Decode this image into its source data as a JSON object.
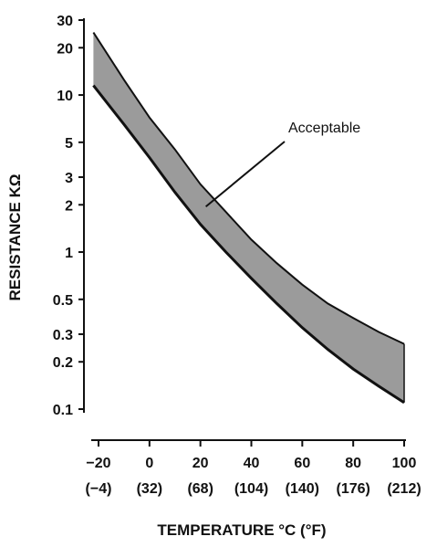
{
  "chart_data": {
    "type": "area",
    "xlabel": "TEMPERATURE °C (°F)",
    "ylabel": "RESISTANCE KΩ",
    "y_scale": "log",
    "xlim": [
      -20,
      100
    ],
    "ylim": [
      0.1,
      30
    ],
    "x_ticks": [
      {
        "value": -20,
        "label": "−20",
        "sublabel": "(−4)"
      },
      {
        "value": 0,
        "label": "0",
        "sublabel": "(32)"
      },
      {
        "value": 20,
        "label": "20",
        "sublabel": "(68)"
      },
      {
        "value": 40,
        "label": "40",
        "sublabel": "(104)"
      },
      {
        "value": 60,
        "label": "60",
        "sublabel": "(140)"
      },
      {
        "value": 80,
        "label": "80",
        "sublabel": "(176)"
      },
      {
        "value": 100,
        "label": "100",
        "sublabel": "(212)"
      }
    ],
    "y_ticks": [
      {
        "value": 0.1,
        "label": "0.1"
      },
      {
        "value": 0.2,
        "label": "0.2"
      },
      {
        "value": 0.3,
        "label": "0.3"
      },
      {
        "value": 0.5,
        "label": "0.5"
      },
      {
        "value": 1,
        "label": "1"
      },
      {
        "value": 2,
        "label": "2"
      },
      {
        "value": 3,
        "label": "3"
      },
      {
        "value": 5,
        "label": "5"
      },
      {
        "value": 10,
        "label": "10"
      },
      {
        "value": 20,
        "label": "20"
      },
      {
        "value": 30,
        "label": "30"
      }
    ],
    "band": {
      "x": [
        -22,
        -10,
        0,
        10,
        20,
        30,
        40,
        50,
        60,
        70,
        80,
        90,
        100
      ],
      "upper": [
        25,
        12.5,
        7.2,
        4.5,
        2.7,
        1.8,
        1.2,
        0.85,
        0.62,
        0.47,
        0.38,
        0.31,
        0.26
      ],
      "lower": [
        11.5,
        6.5,
        4.0,
        2.4,
        1.5,
        1.0,
        0.68,
        0.47,
        0.33,
        0.24,
        0.18,
        0.14,
        0.11
      ]
    },
    "annotation": {
      "text": "Acceptable",
      "x": 25,
      "y": 2.0
    },
    "grid": false,
    "legend": "none",
    "band_fill": "#8a8a8a",
    "line_color": "#111111"
  }
}
